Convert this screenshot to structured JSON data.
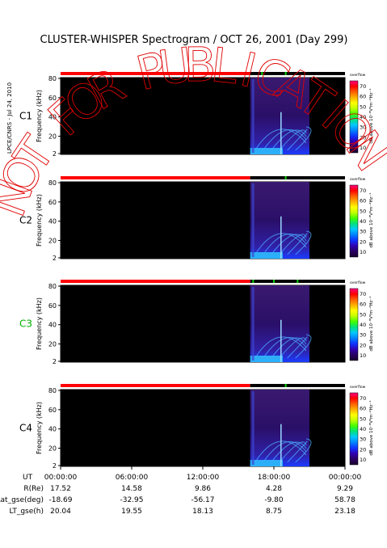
{
  "title": "CLUSTER-WHISPER Spectrogram / OCT 26, 2001 (Day 299)",
  "side_credit": "LPCE/CNRS - Jul 24, 2010",
  "watermark": "NOT FOR PUBLICATION",
  "colorbar": {
    "ticks": [
      10,
      20,
      30,
      40,
      50,
      60,
      70
    ],
    "label": "dB above 10⁻⁸V²m⁻²Hz⁻¹",
    "top_label": "overflow",
    "colors": [
      "#1a0030",
      "#2a0060",
      "#3000b0",
      "#1030ff",
      "#0080ff",
      "#00c8ff",
      "#00e080",
      "#40ff00",
      "#c0ff00",
      "#ffff00",
      "#ffb000",
      "#ff6000",
      "#ff0000",
      "#ff0080"
    ]
  },
  "colors": {
    "background_field": "#000000",
    "accent_red": "#ff0000",
    "accent_green": "#00d000",
    "title_C3": "#00b000"
  },
  "chart_data": [
    {
      "type": "heatmap",
      "panel": "C1",
      "ylabel": "Frequency (kHz)",
      "yticks": [
        2,
        20,
        40,
        60,
        80
      ],
      "ylim": [
        2,
        80
      ],
      "xlim": [
        "00:00:00",
        "24:00:00"
      ],
      "activity_window": [
        "16:00",
        "21:00"
      ],
      "status_bar": {
        "red_until": "16:00",
        "green_marks": [
          "17:00",
          "19:00"
        ]
      },
      "label_color": "#000000"
    },
    {
      "type": "heatmap",
      "panel": "C2",
      "ylabel": "Frequency (kHz)",
      "yticks": [
        2,
        20,
        40,
        60,
        80
      ],
      "ylim": [
        2,
        80
      ],
      "xlim": [
        "00:00:00",
        "24:00:00"
      ],
      "activity_window": [
        "16:00",
        "21:00"
      ],
      "status_bar": {
        "red_until": "16:00",
        "green_marks": [
          "19:00"
        ]
      },
      "label_color": "#000000"
    },
    {
      "type": "heatmap",
      "panel": "C3",
      "ylabel": "Frequency (kHz)",
      "yticks": [
        2,
        20,
        40,
        60,
        80
      ],
      "ylim": [
        2,
        80
      ],
      "xlim": [
        "00:00:00",
        "24:00:00"
      ],
      "activity_window": [
        "16:00",
        "21:00"
      ],
      "status_bar": {
        "red_until": "16:00",
        "green_marks": [
          "16:15",
          "18:00",
          "20:00"
        ]
      },
      "label_color": "#00b000"
    },
    {
      "type": "heatmap",
      "panel": "C4",
      "ylabel": "Frequency (kHz)",
      "yticks": [
        2,
        20,
        40,
        60,
        80
      ],
      "ylim": [
        2,
        80
      ],
      "xlim": [
        "00:00:00",
        "24:00:00"
      ],
      "activity_window": [
        "16:00",
        "21:00"
      ],
      "status_bar": {
        "red_until": "16:00",
        "green_marks": [
          "19:00"
        ]
      },
      "label_color": "#000000"
    }
  ],
  "time_axis": {
    "label": "UT",
    "ticks": [
      "00:00:00",
      "06:00:00",
      "12:00:00",
      "18:00:00",
      "00:00:00"
    ]
  },
  "ephemeris": [
    {
      "label": "R(Re)",
      "values": [
        "17.52",
        "14.58",
        "9.86",
        "4.28",
        "9.29"
      ]
    },
    {
      "label": "Lat_gse(deg)",
      "values": [
        "-18.69",
        "-32.95",
        "-56.17",
        "-9.80",
        "58.78"
      ]
    },
    {
      "label": "LT_gse(h)",
      "values": [
        "20.04",
        "19.55",
        "18.13",
        "8.75",
        "23.18"
      ]
    }
  ]
}
